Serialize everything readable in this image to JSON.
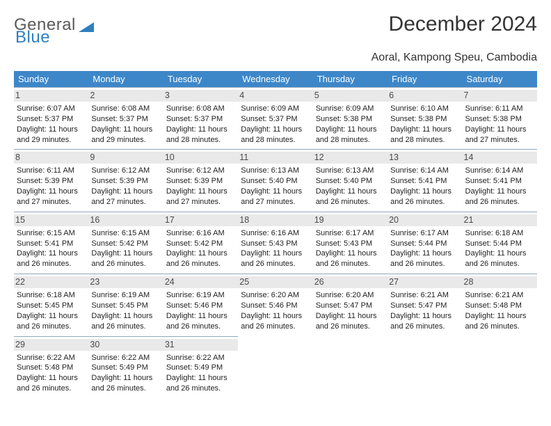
{
  "brand": {
    "part1": "General",
    "part2": "Blue"
  },
  "title": "December 2024",
  "location": "Aoral, Kampong Speu, Cambodia",
  "colors": {
    "header_bg": "#3d87c9",
    "header_text": "#ffffff",
    "cell_border": "#8fa8bd",
    "daynum_bg": "#e9e9e9",
    "brand_accent": "#2f7fbf"
  },
  "layout": {
    "type": "calendar",
    "columns": 7,
    "rows": 5,
    "weekday_fontsize": 13,
    "body_fontsize": 11,
    "title_fontsize": 30
  },
  "weekdays": [
    "Sunday",
    "Monday",
    "Tuesday",
    "Wednesday",
    "Thursday",
    "Friday",
    "Saturday"
  ],
  "days": [
    {
      "n": "1",
      "sr": "6:07 AM",
      "ss": "5:37 PM",
      "dl": "11 hours and 29 minutes."
    },
    {
      "n": "2",
      "sr": "6:08 AM",
      "ss": "5:37 PM",
      "dl": "11 hours and 29 minutes."
    },
    {
      "n": "3",
      "sr": "6:08 AM",
      "ss": "5:37 PM",
      "dl": "11 hours and 28 minutes."
    },
    {
      "n": "4",
      "sr": "6:09 AM",
      "ss": "5:37 PM",
      "dl": "11 hours and 28 minutes."
    },
    {
      "n": "5",
      "sr": "6:09 AM",
      "ss": "5:38 PM",
      "dl": "11 hours and 28 minutes."
    },
    {
      "n": "6",
      "sr": "6:10 AM",
      "ss": "5:38 PM",
      "dl": "11 hours and 28 minutes."
    },
    {
      "n": "7",
      "sr": "6:11 AM",
      "ss": "5:38 PM",
      "dl": "11 hours and 27 minutes."
    },
    {
      "n": "8",
      "sr": "6:11 AM",
      "ss": "5:39 PM",
      "dl": "11 hours and 27 minutes."
    },
    {
      "n": "9",
      "sr": "6:12 AM",
      "ss": "5:39 PM",
      "dl": "11 hours and 27 minutes."
    },
    {
      "n": "10",
      "sr": "6:12 AM",
      "ss": "5:39 PM",
      "dl": "11 hours and 27 minutes."
    },
    {
      "n": "11",
      "sr": "6:13 AM",
      "ss": "5:40 PM",
      "dl": "11 hours and 27 minutes."
    },
    {
      "n": "12",
      "sr": "6:13 AM",
      "ss": "5:40 PM",
      "dl": "11 hours and 26 minutes."
    },
    {
      "n": "13",
      "sr": "6:14 AM",
      "ss": "5:41 PM",
      "dl": "11 hours and 26 minutes."
    },
    {
      "n": "14",
      "sr": "6:14 AM",
      "ss": "5:41 PM",
      "dl": "11 hours and 26 minutes."
    },
    {
      "n": "15",
      "sr": "6:15 AM",
      "ss": "5:41 PM",
      "dl": "11 hours and 26 minutes."
    },
    {
      "n": "16",
      "sr": "6:15 AM",
      "ss": "5:42 PM",
      "dl": "11 hours and 26 minutes."
    },
    {
      "n": "17",
      "sr": "6:16 AM",
      "ss": "5:42 PM",
      "dl": "11 hours and 26 minutes."
    },
    {
      "n": "18",
      "sr": "6:16 AM",
      "ss": "5:43 PM",
      "dl": "11 hours and 26 minutes."
    },
    {
      "n": "19",
      "sr": "6:17 AM",
      "ss": "5:43 PM",
      "dl": "11 hours and 26 minutes."
    },
    {
      "n": "20",
      "sr": "6:17 AM",
      "ss": "5:44 PM",
      "dl": "11 hours and 26 minutes."
    },
    {
      "n": "21",
      "sr": "6:18 AM",
      "ss": "5:44 PM",
      "dl": "11 hours and 26 minutes."
    },
    {
      "n": "22",
      "sr": "6:18 AM",
      "ss": "5:45 PM",
      "dl": "11 hours and 26 minutes."
    },
    {
      "n": "23",
      "sr": "6:19 AM",
      "ss": "5:45 PM",
      "dl": "11 hours and 26 minutes."
    },
    {
      "n": "24",
      "sr": "6:19 AM",
      "ss": "5:46 PM",
      "dl": "11 hours and 26 minutes."
    },
    {
      "n": "25",
      "sr": "6:20 AM",
      "ss": "5:46 PM",
      "dl": "11 hours and 26 minutes."
    },
    {
      "n": "26",
      "sr": "6:20 AM",
      "ss": "5:47 PM",
      "dl": "11 hours and 26 minutes."
    },
    {
      "n": "27",
      "sr": "6:21 AM",
      "ss": "5:47 PM",
      "dl": "11 hours and 26 minutes."
    },
    {
      "n": "28",
      "sr": "6:21 AM",
      "ss": "5:48 PM",
      "dl": "11 hours and 26 minutes."
    },
    {
      "n": "29",
      "sr": "6:22 AM",
      "ss": "5:48 PM",
      "dl": "11 hours and 26 minutes."
    },
    {
      "n": "30",
      "sr": "6:22 AM",
      "ss": "5:49 PM",
      "dl": "11 hours and 26 minutes."
    },
    {
      "n": "31",
      "sr": "6:22 AM",
      "ss": "5:49 PM",
      "dl": "11 hours and 26 minutes."
    }
  ],
  "labels": {
    "sunrise": "Sunrise:",
    "sunset": "Sunset:",
    "daylight": "Daylight:"
  }
}
